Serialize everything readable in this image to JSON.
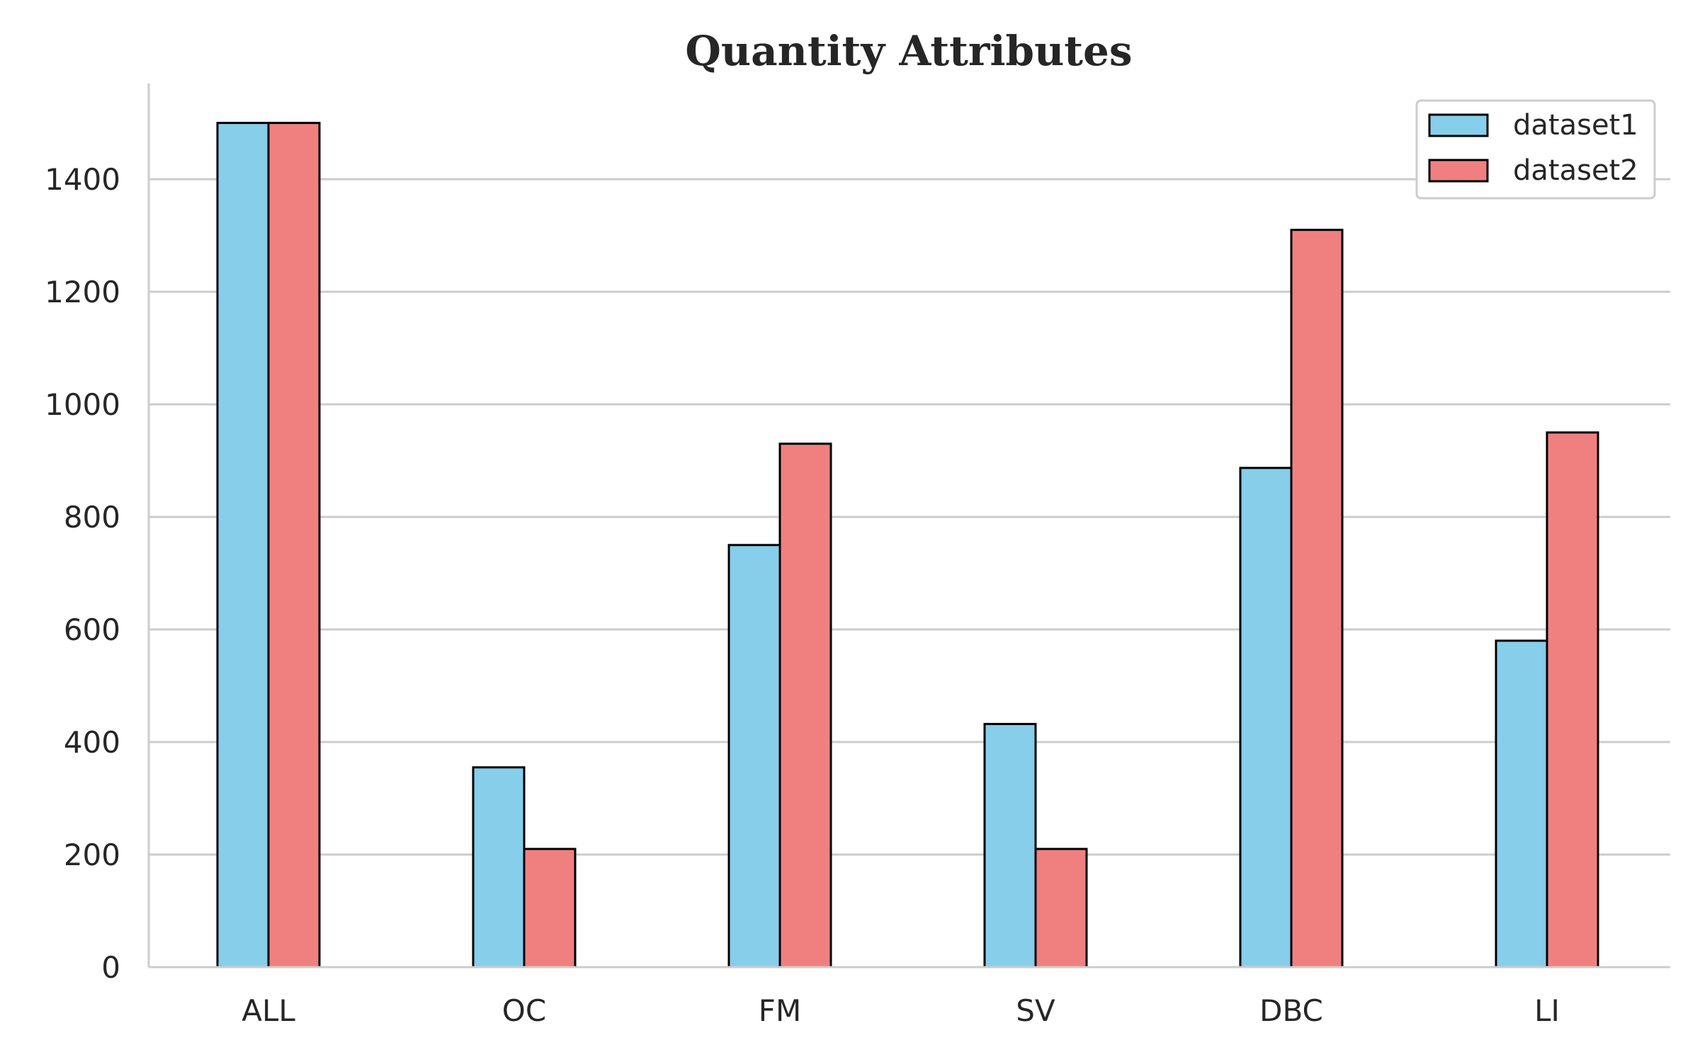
{
  "chart_data": {
    "type": "bar",
    "title": "Quantity Attributes",
    "xlabel": "",
    "ylabel": "",
    "categories": [
      "ALL",
      "OC",
      "FM",
      "SV",
      "DBC",
      "LI"
    ],
    "series": [
      {
        "name": "dataset1",
        "color": "#87CEEB",
        "values": [
          1500,
          355,
          750,
          432,
          887,
          580
        ]
      },
      {
        "name": "dataset2",
        "color": "#F08080",
        "values": [
          1500,
          210,
          930,
          210,
          1310,
          950
        ]
      }
    ],
    "ylim": [
      0,
      1570
    ],
    "yticks": [
      0,
      200,
      400,
      600,
      800,
      1000,
      1200,
      1400
    ],
    "grid": "horizontal",
    "legend_position": "top-right",
    "bar_edge_color": "#000000",
    "grid_color": "#cccccc",
    "axis_color": "#cccccc"
  }
}
